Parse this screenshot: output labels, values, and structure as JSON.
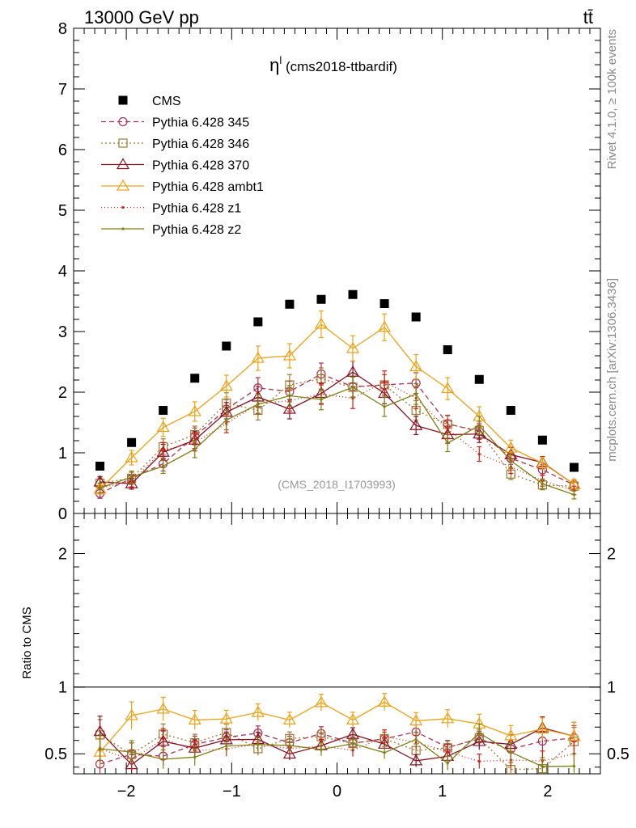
{
  "header": {
    "left_label": "13000 GeV pp",
    "right_label": "tt̄"
  },
  "side_labels": {
    "rivet": "Rivet 4.1.0, ≥ 100k events",
    "mcplots": "mcplots.cern.ch [arXiv:1306.3436]"
  },
  "chart_data": {
    "type": "scatter",
    "title_main": "η",
    "title_sup": "l",
    "title_rest": " (cms2018-ttbardif)",
    "watermark": "(CMS_2018_I1703993)",
    "x": [
      -2.25,
      -1.95,
      -1.65,
      -1.35,
      -1.05,
      -0.75,
      -0.45,
      -0.15,
      0.15,
      0.45,
      0.75,
      1.05,
      1.35,
      1.65,
      1.95,
      2.25
    ],
    "xlim": [
      -2.5,
      2.5
    ],
    "xticks": [
      -2,
      -1,
      0,
      1,
      2
    ],
    "xtick_labels": [
      "−2",
      "−1",
      "0",
      "1",
      "2"
    ],
    "main": {
      "ylim": [
        0,
        8
      ],
      "yticks": [
        0,
        1,
        2,
        3,
        4,
        5,
        6,
        7,
        8
      ],
      "ytick_labels": [
        "0",
        "1",
        "2",
        "3",
        "4",
        "5",
        "6",
        "7",
        "8"
      ]
    },
    "ratio": {
      "ylabel": "Ratio to CMS",
      "ylim": [
        0.35,
        2.3
      ],
      "reference": 1,
      "yticks": [
        0.5,
        1,
        2
      ],
      "ytick_labels": [
        "0.5",
        "1",
        "2"
      ]
    },
    "data_series": {
      "name": "CMS",
      "color": "#000000",
      "values": [
        0.78,
        1.17,
        1.7,
        2.23,
        2.76,
        3.16,
        3.45,
        3.53,
        3.61,
        3.46,
        3.24,
        2.7,
        2.21,
        1.7,
        1.21,
        0.76
      ]
    },
    "series": [
      {
        "name": "Pythia 6.428 345",
        "color": "#b03050",
        "marker": "circle",
        "dash": "6,4",
        "values": [
          0.33,
          0.58,
          0.82,
          1.27,
          1.72,
          2.07,
          2.01,
          2.3,
          2.09,
          2.12,
          2.15,
          1.48,
          1.35,
          0.91,
          0.72,
          0.47
        ],
        "errors": [
          0.08,
          0.1,
          0.12,
          0.14,
          0.16,
          0.17,
          0.17,
          0.18,
          0.17,
          0.17,
          0.17,
          0.14,
          0.13,
          0.1,
          0.09,
          0.07
        ]
      },
      {
        "name": "Pythia 6.428 346",
        "color": "#a07830",
        "marker": "square",
        "dash": "2,3",
        "values": [
          0.5,
          0.58,
          1.1,
          1.3,
          1.82,
          1.7,
          2.12,
          2.22,
          2.08,
          2.12,
          1.7,
          1.47,
          1.37,
          0.65,
          0.47,
          0.45
        ],
        "errors": [
          0.09,
          0.1,
          0.13,
          0.14,
          0.17,
          0.16,
          0.17,
          0.18,
          0.17,
          0.17,
          0.16,
          0.14,
          0.14,
          0.09,
          0.08,
          0.08
        ]
      },
      {
        "name": "Pythia 6.428 370",
        "color": "#8b1020",
        "marker": "triangle",
        "dash": "",
        "values": [
          0.52,
          0.49,
          1.01,
          1.21,
          1.67,
          1.92,
          1.72,
          1.98,
          2.33,
          1.98,
          1.45,
          1.3,
          1.31,
          0.97,
          0.84,
          0.48
        ],
        "errors": [
          0.09,
          0.09,
          0.13,
          0.14,
          0.16,
          0.17,
          0.16,
          0.17,
          0.18,
          0.17,
          0.15,
          0.14,
          0.14,
          0.12,
          0.1,
          0.08
        ]
      },
      {
        "name": "Pythia 6.428 ambt1",
        "color": "#f0a010",
        "marker": "triangle",
        "dash": "",
        "values": [
          0.4,
          0.92,
          1.42,
          1.68,
          2.1,
          2.56,
          2.6,
          3.12,
          2.72,
          3.07,
          2.42,
          2.06,
          1.6,
          1.08,
          0.83,
          0.48
        ],
        "errors": [
          0.08,
          0.12,
          0.15,
          0.16,
          0.18,
          0.2,
          0.2,
          0.22,
          0.21,
          0.22,
          0.2,
          0.18,
          0.16,
          0.13,
          0.1,
          0.08
        ]
      },
      {
        "name": "Pythia 6.428 z1",
        "color": "#d02010",
        "marker": "dot",
        "dash": "1,3",
        "values": [
          0.42,
          0.53,
          1.04,
          1.17,
          1.48,
          1.81,
          1.86,
          1.97,
          1.9,
          2.17,
          1.9,
          1.39,
          0.98,
          0.77,
          0.54,
          0.38
        ],
        "errors": [
          0.08,
          0.09,
          0.13,
          0.14,
          0.15,
          0.16,
          0.17,
          0.17,
          0.17,
          0.18,
          0.17,
          0.15,
          0.12,
          0.11,
          0.09,
          0.07
        ]
      },
      {
        "name": "Pythia 6.428 z2",
        "color": "#808010",
        "marker": "dot",
        "dash": "",
        "values": [
          0.42,
          0.6,
          0.78,
          1.06,
          1.54,
          1.8,
          1.94,
          1.88,
          2.08,
          1.76,
          1.97,
          1.16,
          1.45,
          0.87,
          0.49,
          0.31
        ],
        "errors": [
          0.08,
          0.1,
          0.12,
          0.14,
          0.16,
          0.16,
          0.17,
          0.17,
          0.17,
          0.16,
          0.17,
          0.14,
          0.15,
          0.12,
          0.08,
          0.07
        ]
      }
    ]
  }
}
